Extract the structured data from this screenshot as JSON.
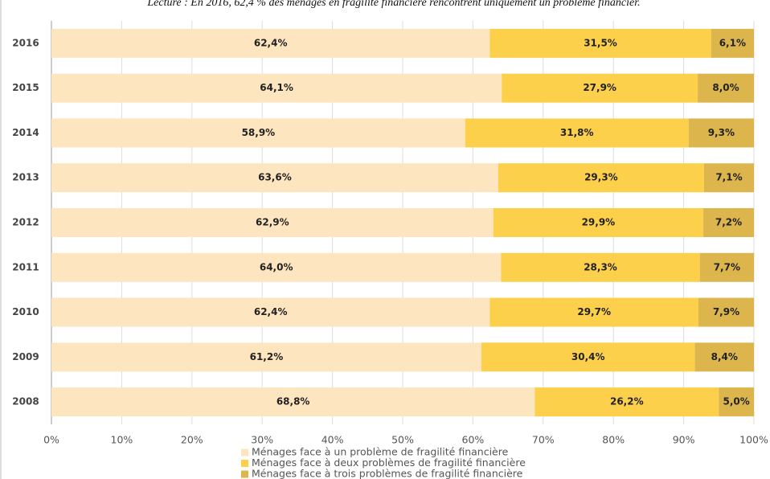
{
  "chart_data": {
    "type": "stacked-bar-horizontal",
    "subtitle": "Lecture : En 2016, 62,4 % des ménages en fragilité financière rencontrent uniquement un problème financier.",
    "categories": [
      "2016",
      "2015",
      "2014",
      "2013",
      "2012",
      "2011",
      "2010",
      "2009",
      "2008"
    ],
    "series": [
      {
        "name": "Ménages face à un problème de fragilité financière",
        "color": "#fde5c0",
        "values": [
          62.4,
          64.1,
          58.9,
          63.6,
          62.9,
          64.0,
          62.4,
          61.2,
          68.8
        ],
        "value_labels": [
          "62,4%",
          "64,1%",
          "58,9%",
          "63,6%",
          "62,9%",
          "64,0%",
          "62,4%",
          "61,2%",
          "68,8%"
        ]
      },
      {
        "name": "Ménages face à deux problèmes de fragilité financière",
        "color": "#fcd04a",
        "values": [
          31.5,
          27.9,
          31.8,
          29.3,
          29.9,
          28.3,
          29.7,
          30.4,
          26.2
        ],
        "value_labels": [
          "31,5%",
          "27,9%",
          "31,8%",
          "29,3%",
          "29,9%",
          "28,3%",
          "29,7%",
          "30,4%",
          "26,2%"
        ]
      },
      {
        "name": "Ménages face à trois problèmes de fragilité financière",
        "color": "#dcb64c",
        "values": [
          6.1,
          8.0,
          9.3,
          7.1,
          7.2,
          7.7,
          7.9,
          8.4,
          5.0
        ],
        "value_labels": [
          "6,1%",
          "8,0%",
          "9,3%",
          "7,1%",
          "7,2%",
          "7,7%",
          "7,9%",
          "8,4%",
          "5,0%"
        ]
      }
    ],
    "xlim": [
      0,
      100
    ],
    "xticks": [
      {
        "value": 0,
        "label": "0%"
      },
      {
        "value": 10,
        "label": "10%"
      },
      {
        "value": 20,
        "label": "20%"
      },
      {
        "value": 30,
        "label": "30%"
      },
      {
        "value": 40,
        "label": "40%"
      },
      {
        "value": 50,
        "label": "50%"
      },
      {
        "value": 60,
        "label": "60%"
      },
      {
        "value": 70,
        "label": "70%"
      },
      {
        "value": 80,
        "label": "80%"
      },
      {
        "value": 90,
        "label": "90%"
      },
      {
        "value": 100,
        "label": "100%"
      }
    ],
    "grid": true,
    "legend": "bottom"
  }
}
